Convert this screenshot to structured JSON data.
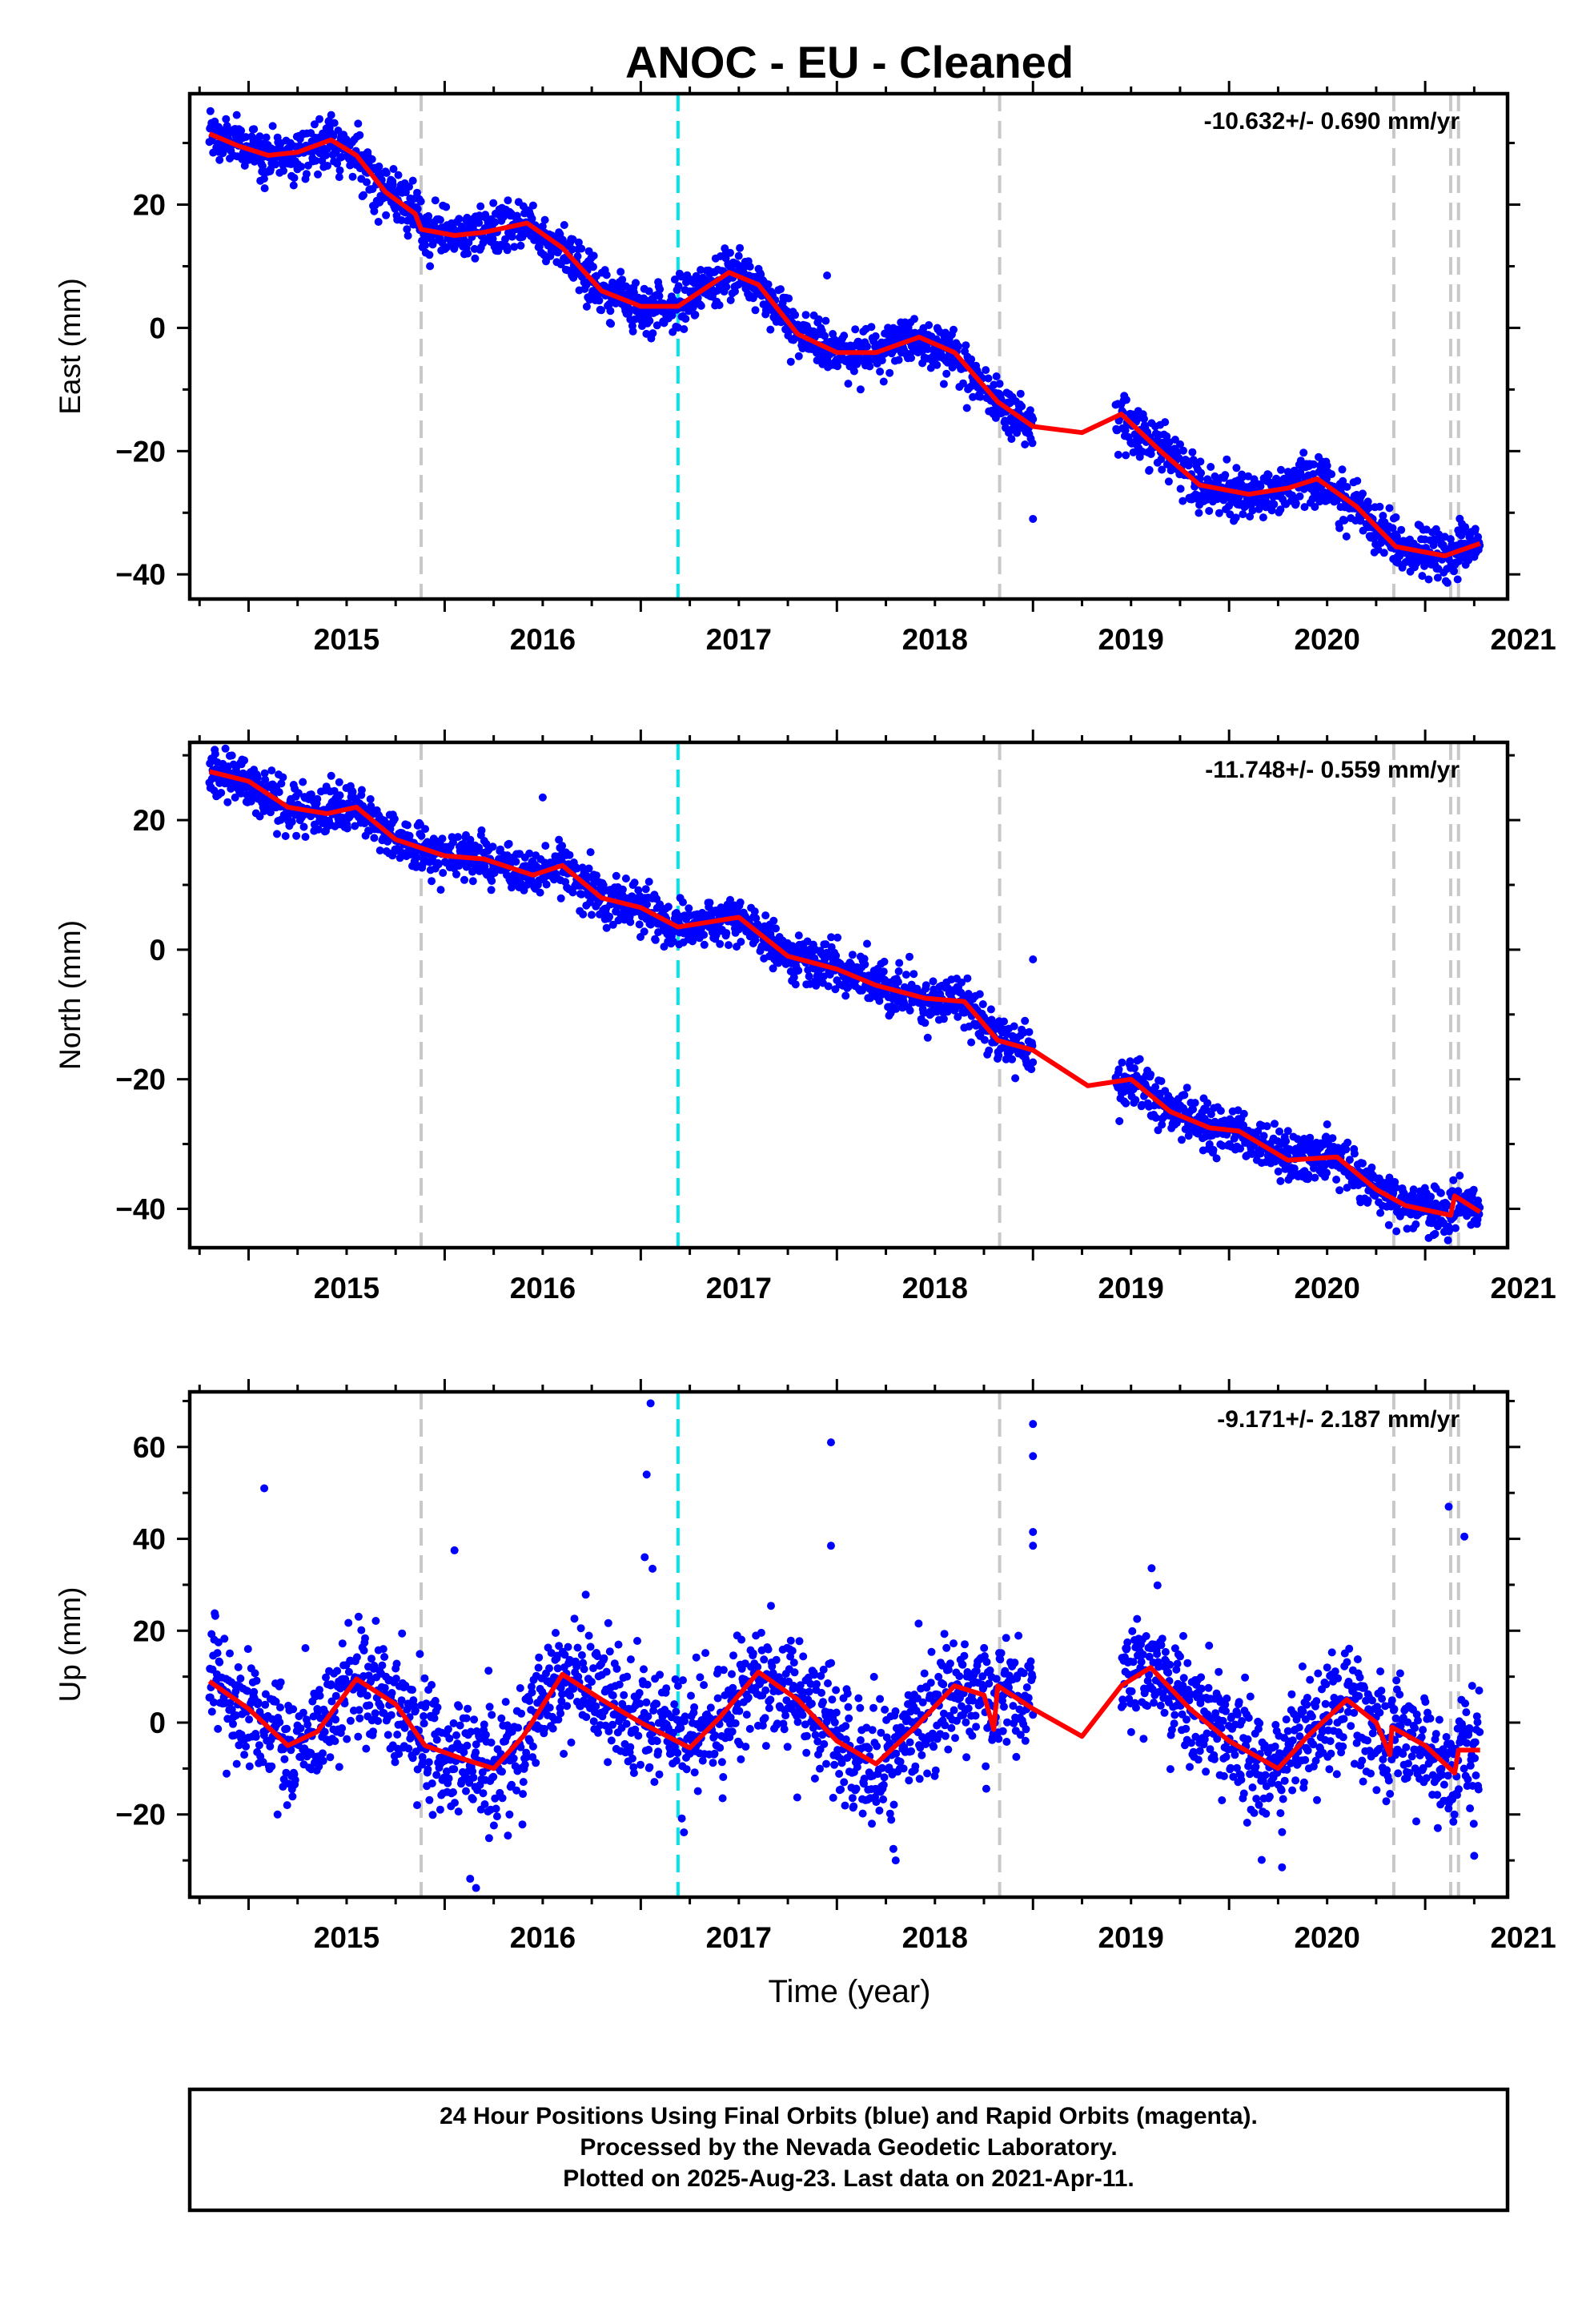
{
  "title": "ANOC  - EU - Cleaned",
  "xlabel": "Time (year)",
  "footer": {
    "line1": "24 Hour Positions Using Final Orbits (blue) and Rapid Orbits (magenta).",
    "line2": "Processed by the Nevada Geodetic Laboratory.",
    "line3": "Plotted on 2025-Aug-23. Last data on 2021-Apr-11."
  },
  "colors": {
    "points": "#0000ff",
    "fit": "#ff0000",
    "equipment_change": "#c8c8c8",
    "earthquake": "#00e5ee",
    "frame": "#000000"
  },
  "chart_data": [
    {
      "type": "scatter",
      "component": "East",
      "ylabel": "East (mm)",
      "rate_label": "-10.632+/- 0.690 mm/yr",
      "xlim": [
        2014.7,
        2021.42
      ],
      "ylim": [
        -44,
        38
      ],
      "xticks": [
        2015,
        2016,
        2017,
        2018,
        2019,
        2020,
        2021
      ],
      "yticks": [
        -40,
        -20,
        0,
        20
      ],
      "gap": [
        2019.0,
        2019.42
      ],
      "steps": [
        [
          2017.19,
          2.5
        ]
      ],
      "scatter_sd": 2.0,
      "fit_x": [
        2014.8,
        2014.95,
        2015.1,
        2015.25,
        2015.42,
        2015.55,
        2015.7,
        2015.85,
        2015.88,
        2016.05,
        2016.2,
        2016.42,
        2016.6,
        2016.8,
        2017.0,
        2017.19,
        2017.45,
        2017.6,
        2017.8,
        2018.0,
        2018.2,
        2018.42,
        2018.6,
        2018.82,
        2019.0,
        2019.25,
        2019.45,
        2019.65,
        2019.85,
        2020.1,
        2020.3,
        2020.45,
        2020.65,
        2020.85,
        2021.1,
        2021.28
      ],
      "fit_y": [
        31.5,
        29.5,
        28.0,
        28.5,
        30.5,
        28.0,
        22.0,
        18.5,
        16.0,
        15.0,
        15.5,
        17.0,
        13.0,
        6.0,
        3.5,
        3.5,
        9.0,
        7.0,
        -1.0,
        -4.0,
        -4.0,
        -1.5,
        -4.0,
        -12.0,
        -16.0,
        -17.0,
        -14.0,
        -20.0,
        -25.5,
        -27.0,
        -26.0,
        -24.5,
        -29.0,
        -35.5,
        -37.0,
        -35.0
      ],
      "outliers": [
        [
          2017.95,
          8.5
        ],
        [
          2019.0,
          -31.0
        ]
      ]
    },
    {
      "type": "scatter",
      "component": "North",
      "ylabel": "North (mm)",
      "rate_label": "-11.748+/- 0.559 mm/yr",
      "xlim": [
        2014.7,
        2021.42
      ],
      "ylim": [
        -46,
        32
      ],
      "xticks": [
        2015,
        2016,
        2017,
        2018,
        2019,
        2020,
        2021
      ],
      "yticks": [
        -40,
        -20,
        0,
        20
      ],
      "gap": [
        2019.0,
        2019.42
      ],
      "steps": [
        [
          2017.19,
          2.0
        ],
        [
          2021.15,
          3.0
        ]
      ],
      "scatter_sd": 1.8,
      "fit_x": [
        2014.8,
        2015.0,
        2015.2,
        2015.4,
        2015.55,
        2015.75,
        2016.0,
        2016.2,
        2016.45,
        2016.6,
        2016.8,
        2017.0,
        2017.19,
        2017.5,
        2017.75,
        2018.0,
        2018.2,
        2018.45,
        2018.65,
        2018.82,
        2019.0,
        2019.28,
        2019.5,
        2019.7,
        2019.9,
        2020.05,
        2020.3,
        2020.55,
        2020.75,
        2020.9,
        2021.13,
        2021.15,
        2021.28
      ],
      "fit_y": [
        27.5,
        26.0,
        22.0,
        21.0,
        22.0,
        17.0,
        14.5,
        14.0,
        11.5,
        13.0,
        8.0,
        6.5,
        3.5,
        5.0,
        -1.0,
        -3.0,
        -5.5,
        -7.5,
        -8.0,
        -14.0,
        -15.5,
        -21.0,
        -20.0,
        -25.0,
        -27.5,
        -28.0,
        -32.5,
        -32.0,
        -37.0,
        -39.5,
        -41.0,
        -38.0,
        -40.5
      ],
      "outliers": [
        [
          2016.5,
          23.5
        ],
        [
          2019.0,
          -1.5
        ]
      ]
    },
    {
      "type": "scatter",
      "component": "Up",
      "ylabel": "Up (mm)",
      "rate_label": "-9.171+/- 2.187 mm/yr",
      "xlim": [
        2014.7,
        2021.42
      ],
      "ylim": [
        -38,
        72
      ],
      "xticks": [
        2015,
        2016,
        2017,
        2018,
        2019,
        2020,
        2021
      ],
      "yticks": [
        -20,
        0,
        20,
        40,
        60
      ],
      "gap": [
        2019.0,
        2019.45
      ],
      "steps": [],
      "scatter_sd": 6.5,
      "fit_x": [
        2014.8,
        2015.0,
        2015.2,
        2015.35,
        2015.55,
        2015.75,
        2015.9,
        2016.1,
        2016.25,
        2016.4,
        2016.6,
        2016.8,
        2017.0,
        2017.25,
        2017.4,
        2017.6,
        2017.8,
        2018.0,
        2018.2,
        2018.4,
        2018.6,
        2018.75,
        2018.8,
        2018.82,
        2019.0,
        2019.25,
        2019.45,
        2019.6,
        2019.8,
        2020.0,
        2020.25,
        2020.4,
        2020.6,
        2020.75,
        2020.82,
        2020.83,
        2021.0,
        2021.15,
        2021.17,
        2021.28
      ],
      "fit_y": [
        9.0,
        3.0,
        -5.0,
        -2.0,
        9.5,
        4.0,
        -5.0,
        -8.0,
        -10.0,
        -3.0,
        10.5,
        5.0,
        0.0,
        -5.5,
        1.0,
        11.0,
        5.0,
        -4.0,
        -9.0,
        -1.0,
        8.0,
        6.0,
        -1.5,
        8.0,
        3.0,
        -3.0,
        8.0,
        12.0,
        3.0,
        -4.0,
        -10.0,
        -3.0,
        5.0,
        0.0,
        -7.0,
        -1.0,
        -5.0,
        -11.0,
        -6.0,
        -6.0
      ],
      "outliers": [
        [
          2015.08,
          51.0
        ],
        [
          2016.05,
          37.5
        ],
        [
          2017.05,
          69.5
        ],
        [
          2017.03,
          54.0
        ],
        [
          2017.02,
          36.0
        ],
        [
          2017.06,
          33.5
        ],
        [
          2017.97,
          61.0
        ],
        [
          2017.97,
          38.5
        ],
        [
          2019.0,
          65.0
        ],
        [
          2019.0,
          58.0
        ],
        [
          2019.0,
          41.5
        ],
        [
          2019.0,
          38.5
        ],
        [
          2021.12,
          47.0
        ],
        [
          2021.2,
          40.5
        ],
        [
          2016.16,
          -36.0
        ],
        [
          2016.13,
          -34.0
        ],
        [
          2018.3,
          -30.0
        ],
        [
          2020.27,
          -31.5
        ],
        [
          2021.25,
          -29.0
        ]
      ]
    }
  ],
  "event_lines": {
    "equipment": [
      2015.88,
      2018.83,
      2020.84,
      2021.13,
      2021.17
    ],
    "earthquake": [
      2017.19
    ]
  }
}
